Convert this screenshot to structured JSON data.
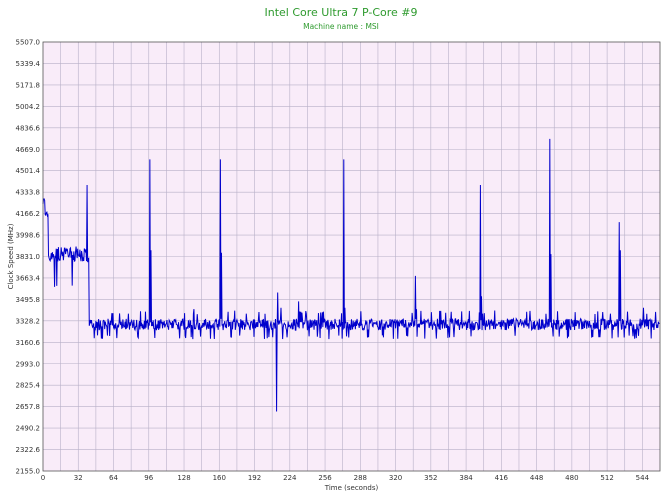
{
  "chart_data": {
    "type": "line",
    "title": "Intel Core Ultra 7 P-Core #9",
    "subtitle": "Machine name : MSI",
    "xlabel": "Time (seconds)",
    "ylabel": "Clock Speed (MHz)",
    "xlim": [
      0,
      560
    ],
    "ylim": [
      2155.0,
      5507.0
    ],
    "x_ticks": [
      0,
      32,
      64,
      96,
      128,
      160,
      192,
      224,
      256,
      288,
      320,
      352,
      384,
      416,
      448,
      480,
      512,
      544
    ],
    "y_ticks": [
      "2155.0",
      "2322.6",
      "2490.2",
      "2657.8",
      "2825.4",
      "2993.0",
      "3160.6",
      "3328.2",
      "3495.8",
      "3663.4",
      "3831.0",
      "3998.6",
      "4166.2",
      "4333.8",
      "4501.4",
      "4669.0",
      "4836.6",
      "5004.2",
      "5171.8",
      "5339.4",
      "5507.0"
    ],
    "grid": true,
    "series": [
      {
        "color": "#0000cc",
        "base_segments": [
          {
            "x0": 0,
            "x1": 2,
            "base": 4260,
            "amp": 30,
            "dip_prob": 0,
            "dip_to": 4260,
            "spike_prob": 0,
            "spike_to": 4260
          },
          {
            "x0": 2,
            "x1": 5,
            "base": 4170,
            "amp": 20,
            "dip_prob": 0,
            "dip_to": 4170,
            "spike_prob": 0,
            "spike_to": 4170
          },
          {
            "x0": 5,
            "x1": 40,
            "base": 3850,
            "amp": 60,
            "dip_prob": 0.07,
            "dip_to": 3600,
            "spike_prob": 0.03,
            "spike_to": 3980
          },
          {
            "x0": 40,
            "x1": 42,
            "base": 3800,
            "amp": 20,
            "dip_prob": 0,
            "dip_to": 3800,
            "spike_prob": 0,
            "spike_to": 3800
          },
          {
            "x0": 42,
            "x1": 560,
            "base": 3300,
            "amp": 45,
            "dip_prob": 0.06,
            "dip_to": 3200,
            "spike_prob": 0.05,
            "spike_to": 3395
          }
        ],
        "spikes": [
          {
            "x": 40,
            "y": 4390
          },
          {
            "x": 97,
            "y": 4590
          },
          {
            "x": 98,
            "y": 3880
          },
          {
            "x": 137,
            "y": 3420
          },
          {
            "x": 161,
            "y": 4590
          },
          {
            "x": 162,
            "y": 3860
          },
          {
            "x": 212,
            "y": 2620
          },
          {
            "x": 213,
            "y": 3550
          },
          {
            "x": 216,
            "y": 3430
          },
          {
            "x": 232,
            "y": 3480
          },
          {
            "x": 273,
            "y": 4590
          },
          {
            "x": 274,
            "y": 3430
          },
          {
            "x": 338,
            "y": 3680
          },
          {
            "x": 339,
            "y": 3420
          },
          {
            "x": 397,
            "y": 4390
          },
          {
            "x": 398,
            "y": 3520
          },
          {
            "x": 460,
            "y": 4750
          },
          {
            "x": 461,
            "y": 3850
          },
          {
            "x": 523,
            "y": 4100
          },
          {
            "x": 524,
            "y": 3880
          },
          {
            "x": 545,
            "y": 3430
          }
        ]
      }
    ]
  }
}
